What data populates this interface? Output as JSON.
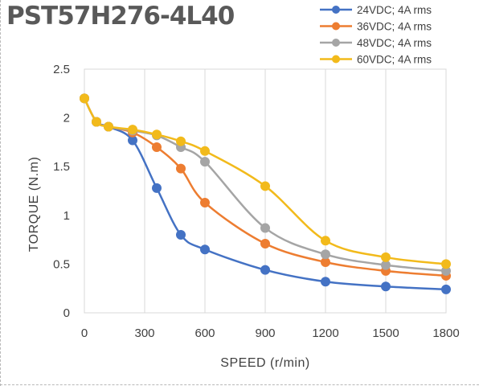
{
  "chart_data": {
    "type": "line",
    "title": "PST57H276-4L40",
    "xlabel": "SPEED (r/min)",
    "ylabel": "TORQUE (N.m)",
    "xlim": [
      0,
      1800
    ],
    "ylim": [
      0,
      2.5
    ],
    "x_ticks": [
      "0",
      "300",
      "600",
      "900",
      "1200",
      "1500",
      "1800"
    ],
    "y_ticks": [
      "0",
      "0.5",
      "1",
      "1.5",
      "2",
      "2.5"
    ],
    "grid": "vertical",
    "legend_position": "top-right",
    "series": [
      {
        "name": "24VDC; 4A rms",
        "color": "#4472C4",
        "x": [
          0,
          60,
          120,
          240,
          360,
          480,
          600,
          900,
          1200,
          1500,
          1800
        ],
        "y": [
          2.2,
          1.96,
          1.91,
          1.77,
          1.28,
          0.8,
          0.65,
          0.44,
          0.32,
          0.27,
          0.24
        ]
      },
      {
        "name": "36VDC; 4A rms",
        "color": "#ED7D31",
        "x": [
          0,
          60,
          120,
          240,
          360,
          480,
          600,
          900,
          1200,
          1500,
          1800
        ],
        "y": [
          2.2,
          1.96,
          1.91,
          1.85,
          1.7,
          1.48,
          1.13,
          0.71,
          0.52,
          0.43,
          0.38
        ]
      },
      {
        "name": "48VDC; 4A rms",
        "color": "#A5A5A5",
        "x": [
          0,
          60,
          120,
          240,
          360,
          480,
          600,
          900,
          1200,
          1500,
          1800
        ],
        "y": [
          2.2,
          1.96,
          1.91,
          1.87,
          1.82,
          1.7,
          1.55,
          0.87,
          0.6,
          0.49,
          0.43
        ]
      },
      {
        "name": "60VDC; 4A rms",
        "color": "#F2BA1B",
        "x": [
          0,
          60,
          120,
          240,
          360,
          480,
          600,
          900,
          1200,
          1500,
          1800
        ],
        "y": [
          2.2,
          1.96,
          1.91,
          1.88,
          1.83,
          1.76,
          1.66,
          1.3,
          0.74,
          0.57,
          0.5
        ]
      }
    ]
  }
}
